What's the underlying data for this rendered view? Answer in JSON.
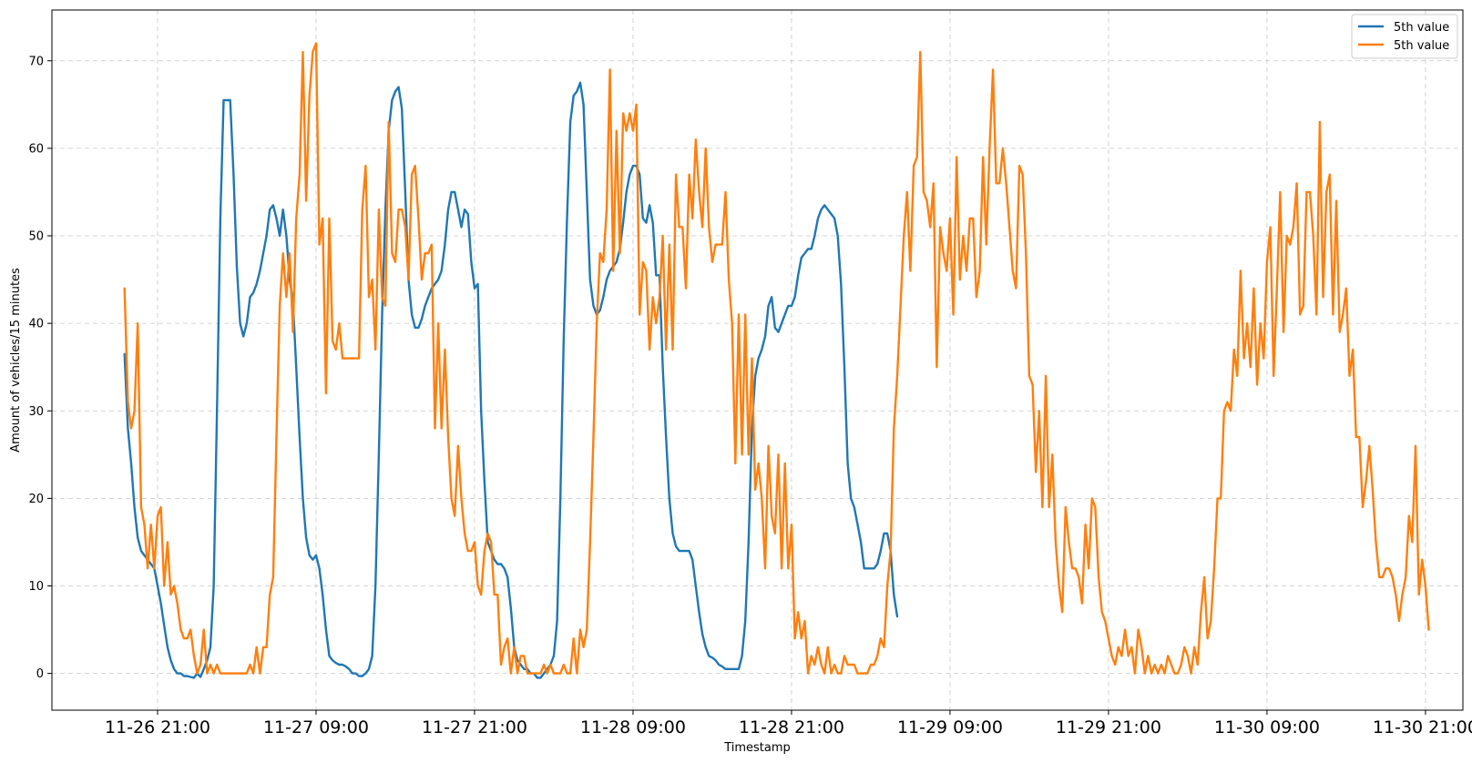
{
  "chart_data": {
    "type": "line",
    "title": "",
    "xlabel": "Timestamp",
    "ylabel": "Amount of vehicles/15 minutes",
    "x_start": "2024-11-26 18:30",
    "x_step_minutes": 15,
    "x_ticks": [
      "11-26 21:00",
      "11-27 09:00",
      "11-27 21:00",
      "11-28 09:00",
      "11-28 21:00",
      "11-29 09:00",
      "11-29 21:00",
      "11-30 09:00",
      "11-30 21:00"
    ],
    "xlim": [
      "2024-11-26 13:00",
      "2024-11-30 23:50"
    ],
    "y_ticks": [
      0,
      10,
      20,
      30,
      40,
      50,
      60,
      70
    ],
    "ylim": [
      -4.2,
      75.8
    ],
    "grid": true,
    "legend_position": "top-right",
    "series": [
      {
        "name": "5th value",
        "color": "#1f77b4",
        "values": [
          36.5,
          28,
          24,
          19,
          15.5,
          14,
          13.5,
          13,
          12.5,
          12,
          10,
          8,
          5.5,
          3,
          1.5,
          0.5,
          0,
          0,
          -0.3,
          -0.3,
          -0.4,
          -0.5,
          0,
          -0.4,
          0.5,
          1.5,
          3,
          10,
          30,
          52,
          65.5,
          65.5,
          65.5,
          57,
          46.5,
          40,
          38.5,
          40,
          43,
          43.5,
          44.5,
          46,
          48,
          50,
          53,
          53.5,
          52,
          50,
          53,
          50,
          45,
          42.5,
          35,
          27,
          20,
          15.5,
          13.5,
          13,
          13.5,
          12,
          9,
          5,
          2,
          1.5,
          1.2,
          1,
          1,
          0.8,
          0.5,
          0,
          0,
          -0.3,
          -0.3,
          0,
          0.5,
          2,
          10,
          25,
          41,
          53,
          62,
          65.5,
          66.5,
          67,
          64.5,
          55,
          45,
          41,
          39.5,
          39.5,
          40.5,
          42,
          43,
          44,
          44.5,
          45,
          46,
          49,
          53,
          55,
          55,
          53,
          51,
          53,
          52.5,
          47,
          44,
          44.5,
          30,
          22,
          15,
          14,
          13,
          12.5,
          12.5,
          12,
          11,
          7.5,
          3,
          1.5,
          1,
          0.5,
          0.5,
          0,
          0,
          -0.5,
          -0.5,
          0,
          0.5,
          1,
          2,
          6,
          20,
          38,
          52,
          63,
          66,
          66.5,
          67.5,
          65,
          55,
          45,
          42,
          41,
          41.5,
          43,
          45,
          46,
          46.5,
          47,
          48.5,
          51.5,
          55,
          57,
          58,
          58,
          57,
          52,
          51.5,
          53.5,
          51.5,
          45.5,
          45.5,
          35,
          27,
          20,
          16,
          14.5,
          14,
          14,
          14,
          14,
          13,
          10,
          7,
          4.5,
          3,
          2,
          1.8,
          1.5,
          1,
          0.8,
          0.5,
          0.5,
          0.5,
          0.5,
          0.5,
          2,
          6,
          15,
          28,
          34,
          36,
          37,
          38.5,
          42,
          43,
          39.5,
          39,
          40,
          41,
          42,
          42,
          43,
          45.5,
          47.5,
          48,
          48.5,
          48.5,
          50,
          52,
          53,
          53.5,
          53,
          52.5,
          52,
          50,
          44.5,
          35,
          24,
          20,
          19,
          17,
          15,
          12,
          12,
          12,
          12,
          12.5,
          14,
          16,
          16,
          14,
          9,
          6.5
        ]
      },
      {
        "name": "5th value",
        "color": "#ff7f0e",
        "values": [
          44,
          31,
          28,
          30,
          40,
          19,
          17,
          12,
          17,
          12,
          18,
          19,
          10,
          15,
          9,
          10,
          8,
          5,
          4,
          4,
          5,
          2,
          0,
          1,
          5,
          0,
          1,
          0,
          1,
          0,
          0,
          0,
          0,
          0,
          0,
          0,
          0,
          0,
          1,
          0,
          3,
          0,
          3,
          3,
          9,
          11,
          27,
          42,
          48,
          43,
          48,
          39,
          52,
          57,
          71,
          54,
          66,
          71,
          72,
          49,
          52,
          32,
          52,
          38,
          37,
          40,
          36,
          36,
          36,
          36,
          36,
          36,
          53,
          58,
          43,
          45,
          37,
          53,
          43,
          42,
          63,
          48,
          47,
          53,
          53,
          51,
          45,
          57,
          58,
          52,
          45,
          48,
          48,
          49,
          28,
          40,
          28,
          37,
          27,
          20,
          18,
          26,
          20,
          16,
          14,
          14,
          15,
          10,
          9,
          14,
          16,
          15,
          9,
          9,
          1,
          3,
          4,
          0,
          3,
          0,
          2,
          2,
          0,
          0,
          0,
          0,
          0,
          1,
          0,
          1,
          0,
          0,
          0,
          1,
          0,
          0,
          4,
          0,
          5,
          3,
          5,
          15,
          27,
          40,
          48,
          47,
          53,
          69,
          46,
          62,
          48,
          64,
          62,
          64,
          62,
          65,
          41,
          47,
          46,
          37,
          43,
          40,
          43,
          50,
          37,
          49,
          37,
          57,
          51,
          51,
          44,
          57,
          52,
          61,
          55,
          51,
          60,
          51,
          47,
          49,
          49,
          49,
          55,
          45,
          40,
          24,
          41,
          25,
          41,
          25,
          36,
          21,
          24,
          20,
          12,
          26,
          18,
          16,
          25,
          12,
          24,
          12,
          17,
          4,
          7,
          4,
          6,
          0,
          2,
          1,
          3,
          1,
          0,
          3,
          0,
          1,
          0,
          0,
          2,
          1,
          1,
          1,
          0,
          0,
          0,
          0,
          1,
          1,
          2,
          4,
          3,
          10,
          14,
          28,
          34,
          42,
          50,
          55,
          46,
          58,
          59,
          71,
          55,
          54,
          51,
          56,
          35,
          51,
          48,
          46,
          52,
          41,
          59,
          45,
          50,
          46,
          52,
          52,
          43,
          46,
          59,
          49,
          60,
          69,
          56,
          56,
          60,
          56,
          51,
          46,
          44,
          58,
          57,
          48,
          34,
          33,
          23,
          30,
          19,
          34,
          19,
          25,
          15,
          10,
          7,
          19,
          15,
          12,
          12,
          11,
          8,
          17,
          12,
          20,
          19,
          11,
          7,
          6,
          4,
          2,
          1,
          3,
          2,
          5,
          2,
          3,
          0,
          5,
          3,
          0,
          2,
          0,
          1,
          0,
          1,
          0,
          2,
          1,
          0,
          0,
          1,
          3,
          2,
          0,
          3,
          1,
          7,
          11,
          4,
          6,
          12,
          20,
          20,
          30,
          31,
          30,
          37,
          34,
          46,
          36,
          40,
          35,
          44,
          33,
          40,
          36,
          47,
          51,
          34,
          44,
          55,
          39,
          50,
          49,
          51,
          56,
          41,
          42,
          55,
          55,
          50,
          41,
          63,
          43,
          55,
          57,
          41,
          54,
          39,
          41,
          44,
          34,
          37,
          27,
          27,
          19,
          22,
          26,
          21,
          15,
          11,
          11,
          12,
          12,
          11,
          9,
          6,
          9,
          11,
          18,
          15,
          26,
          9,
          13,
          10,
          5
        ]
      }
    ]
  }
}
